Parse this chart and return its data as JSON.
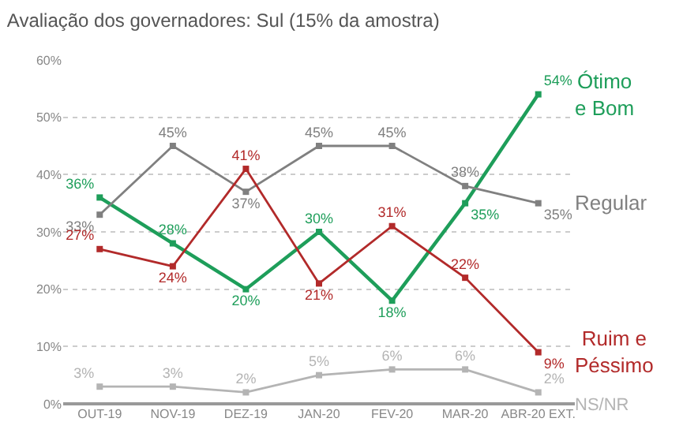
{
  "chart_data": {
    "type": "line",
    "title": "Avaliação dos governadores: Sul (15% da amostra)",
    "categories": [
      "OUT-19",
      "NOV-19",
      "DEZ-19",
      "JAN-20",
      "FEV-20",
      "MAR-20",
      "ABR-20 EXT."
    ],
    "series": [
      {
        "name": "Ótimo e Bom",
        "color": "#1e9e5a",
        "values": [
          36,
          28,
          20,
          30,
          18,
          35,
          54
        ],
        "value_labels": [
          "36%",
          "28%",
          "20%",
          "30%",
          "18%",
          "35%",
          "54%"
        ]
      },
      {
        "name": "Regular",
        "color": "#808080",
        "values": [
          33,
          45,
          37,
          45,
          45,
          38,
          35
        ],
        "value_labels": [
          "33%",
          "45%",
          "37%",
          "45%",
          "45%",
          "38%",
          "35%"
        ]
      },
      {
        "name": "Ruim e Péssimo",
        "color": "#b22a2a",
        "values": [
          27,
          24,
          41,
          21,
          31,
          22,
          9
        ],
        "value_labels": [
          "27%",
          "24%",
          "41%",
          "21%",
          "31%",
          "22%",
          "9%"
        ]
      },
      {
        "name": "NS/NR",
        "color": "#b4b4b4",
        "values": [
          3,
          3,
          2,
          5,
          6,
          6,
          2
        ],
        "value_labels": [
          "3%",
          "3%",
          "2%",
          "5%",
          "6%",
          "6%",
          "2%"
        ]
      }
    ],
    "ylim": [
      0,
      60
    ],
    "yticks": [
      {
        "value": 0,
        "label": "0%"
      },
      {
        "value": 10,
        "label": "10%"
      },
      {
        "value": 20,
        "label": "20%"
      },
      {
        "value": 30,
        "label": "30%"
      },
      {
        "value": 40,
        "label": "40%"
      },
      {
        "value": 50,
        "label": "50%"
      },
      {
        "value": 60,
        "label": "60%"
      }
    ],
    "grid": "y",
    "legend": false,
    "marker": "square",
    "line_style": "solid"
  }
}
